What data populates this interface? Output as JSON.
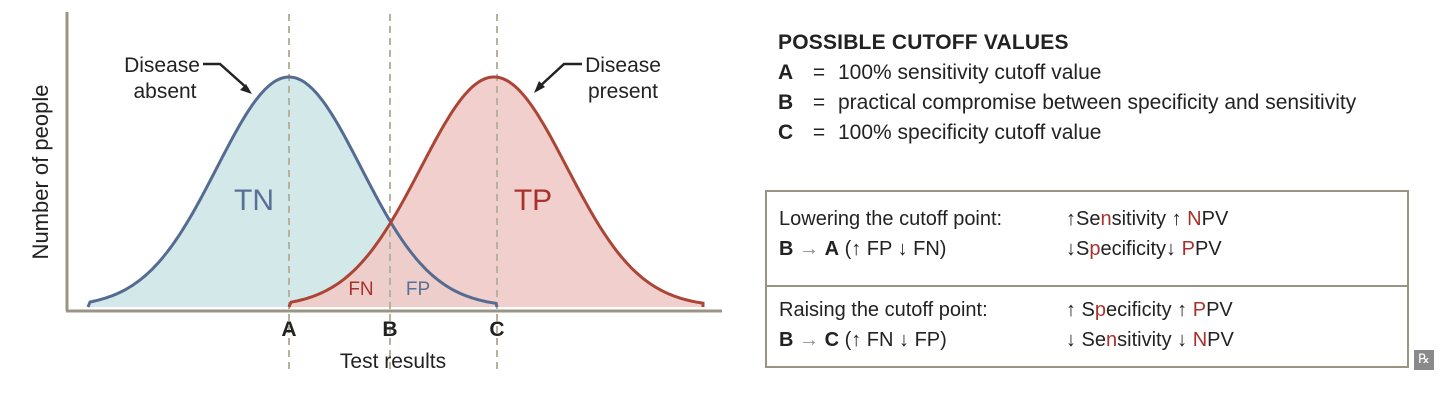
{
  "figure": {
    "y_axis_label": "Number of people",
    "x_axis_label": "Test results",
    "cutoff_markers": [
      "A",
      "B",
      "C"
    ],
    "region_labels": {
      "tn": "TN",
      "tp": "TP",
      "fn": "FN",
      "fp": "FP"
    },
    "curve_labels": {
      "absent_line1": "Disease",
      "absent_line2": "absent",
      "present_line1": "Disease",
      "present_line2": "present"
    },
    "colors": {
      "absent_fill": "#d3e9e9",
      "absent_stroke": "#546b92",
      "present_fill": "#f0cbc8",
      "present_stroke": "#ab4535",
      "cutoff_line": "#b9b1a0",
      "axis": "#9a9484",
      "tn_text": "#5a6f95",
      "tp_text": "#a8322b"
    }
  },
  "legend": {
    "heading": "POSSIBLE CUTOFF VALUES",
    "items": [
      {
        "key": "A",
        "eq": "=",
        "text": "100% sensitivity cutoff value"
      },
      {
        "key": "B",
        "eq": "=",
        "text": "practical compromise between specificity and sensitivity"
      },
      {
        "key": "C",
        "eq": "=",
        "text": "100% specificity cutoff value"
      }
    ]
  },
  "box": {
    "lowering": {
      "title": "Lowering the cutoff point:",
      "move_from": "B",
      "arrow": "→",
      "move_to": "A",
      "detail": "(↑ FP ↓ FN)",
      "effect1_arrow": "↑",
      "effect1_a": "Se",
      "effect1_b": "n",
      "effect1_c": "sitivity ",
      "effect1_arrow2": "↑",
      "effect1_d": " ",
      "effect1_e": "N",
      "effect1_f": "PV",
      "effect2_arrow": "↓",
      "effect2_a": "S",
      "effect2_b": "p",
      "effect2_c": "ecificity",
      "effect2_arrow2": "↓",
      "effect2_d": " ",
      "effect2_e": "P",
      "effect2_f": "PV"
    },
    "raising": {
      "title": "Raising the cutoff point:",
      "move_from": "B",
      "arrow": "→",
      "move_to": "C",
      "detail": "(↑ FN ↓ FP)",
      "effect1_arrow": "↑",
      "effect1_a": " S",
      "effect1_b": "p",
      "effect1_c": "ecificity ",
      "effect1_arrow2": "↑",
      "effect1_d": " ",
      "effect1_e": "P",
      "effect1_f": "PV",
      "effect2_arrow": "↓",
      "effect2_a": " Se",
      "effect2_b": "n",
      "effect2_c": "sitivity ",
      "effect2_arrow2": "↓",
      "effect2_d": " ",
      "effect2_e": "N",
      "effect2_f": "PV"
    }
  },
  "badge": "℞"
}
